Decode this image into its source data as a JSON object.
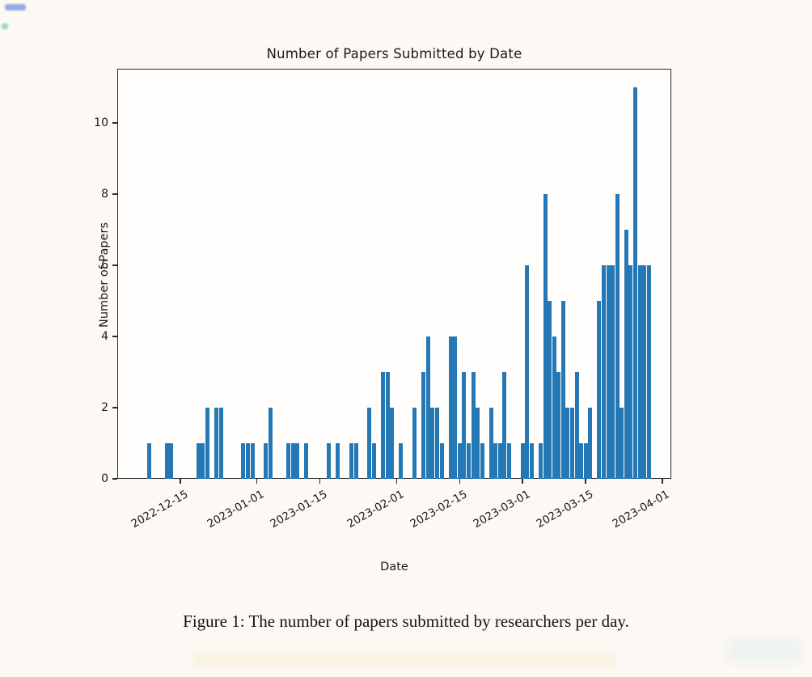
{
  "page": {
    "caption": "Figure 1: The number of papers submitted by researchers per day."
  },
  "chart_data": {
    "type": "bar",
    "title": "Number of Papers Submitted by Date",
    "xlabel": "Date",
    "ylabel": "Number of Papers",
    "bar_color": "#2478b6",
    "legend": "none",
    "grid": false,
    "ylim": [
      0,
      11.5
    ],
    "xlim": [
      "2022-12-01",
      "2023-04-03"
    ],
    "y_ticks": [
      0,
      2,
      4,
      6,
      8,
      10
    ],
    "x_tick_labels": [
      "2022-12-15",
      "2023-01-01",
      "2023-01-15",
      "2023-02-01",
      "2023-02-15",
      "2023-03-01",
      "2023-03-15",
      "2023-04-01"
    ],
    "x": [
      "2022-12-08",
      "2022-12-12",
      "2022-12-13",
      "2022-12-19",
      "2022-12-20",
      "2022-12-21",
      "2022-12-23",
      "2022-12-24",
      "2022-12-29",
      "2022-12-30",
      "2022-12-31",
      "2023-01-03",
      "2023-01-04",
      "2023-01-08",
      "2023-01-09",
      "2023-01-10",
      "2023-01-12",
      "2023-01-17",
      "2023-01-19",
      "2023-01-22",
      "2023-01-23",
      "2023-01-26",
      "2023-01-27",
      "2023-01-29",
      "2023-01-30",
      "2023-01-31",
      "2023-02-02",
      "2023-02-05",
      "2023-02-07",
      "2023-02-08",
      "2023-02-09",
      "2023-02-10",
      "2023-02-11",
      "2023-02-13",
      "2023-02-14",
      "2023-02-15",
      "2023-02-16",
      "2023-02-17",
      "2023-02-18",
      "2023-02-19",
      "2023-02-20",
      "2023-02-22",
      "2023-02-23",
      "2023-02-24",
      "2023-02-25",
      "2023-02-26",
      "2023-03-01",
      "2023-03-02",
      "2023-03-03",
      "2023-03-05",
      "2023-03-06",
      "2023-03-07",
      "2023-03-08",
      "2023-03-09",
      "2023-03-10",
      "2023-03-11",
      "2023-03-12",
      "2023-03-13",
      "2023-03-14",
      "2023-03-15",
      "2023-03-16",
      "2023-03-18",
      "2023-03-19",
      "2023-03-20",
      "2023-03-21",
      "2023-03-22",
      "2023-03-23",
      "2023-03-24",
      "2023-03-25",
      "2023-03-26",
      "2023-03-27",
      "2023-03-28",
      "2023-03-29"
    ],
    "values": [
      1,
      1,
      1,
      1,
      1,
      2,
      2,
      2,
      1,
      1,
      1,
      1,
      2,
      1,
      1,
      1,
      1,
      1,
      1,
      1,
      1,
      2,
      1,
      3,
      3,
      2,
      1,
      2,
      3,
      4,
      2,
      2,
      1,
      4,
      4,
      1,
      3,
      1,
      3,
      2,
      1,
      2,
      1,
      1,
      3,
      1,
      1,
      6,
      1,
      1,
      8,
      5,
      4,
      3,
      5,
      2,
      2,
      3,
      1,
      1,
      2,
      5,
      6,
      6,
      6,
      8,
      2,
      7,
      6,
      11,
      6,
      6,
      6
    ]
  }
}
